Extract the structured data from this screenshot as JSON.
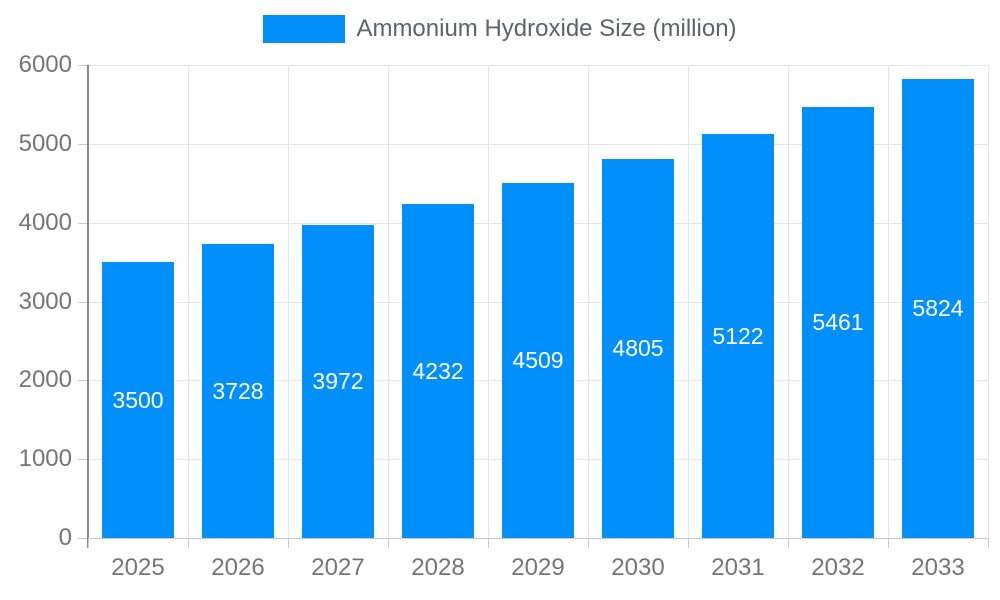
{
  "chart_data": {
    "type": "bar",
    "title": "Ammonium Hydroxide Size (million)",
    "categories": [
      "2025",
      "2026",
      "2027",
      "2028",
      "2029",
      "2030",
      "2031",
      "2032",
      "2033"
    ],
    "series": [
      {
        "name": "Ammonium Hydroxide Size (million)",
        "values": [
          3500,
          3728,
          3972,
          4232,
          4509,
          4805,
          5122,
          5461,
          5824
        ]
      }
    ],
    "bar_value_labels": [
      "3500",
      "3728",
      "3972",
      "4232",
      "4509",
      "4805",
      "5122",
      "5461",
      "5824"
    ],
    "xlabel": "",
    "ylabel": "",
    "ylim": [
      0,
      6000
    ],
    "yticks": [
      0,
      1000,
      2000,
      3000,
      4000,
      5000,
      6000
    ],
    "grid": true,
    "legend_position": "top",
    "colors": {
      "bar": "#008FFB",
      "grid": "#e6e6e6",
      "zero_line": "#c9c9c9",
      "axis_line": "#8a8a8a",
      "tick": "#c9c9c9",
      "axis_text": "#757575",
      "legend_text": "#5f6368",
      "bar_label_text": "#ffffff",
      "background": "#ffffff"
    }
  }
}
